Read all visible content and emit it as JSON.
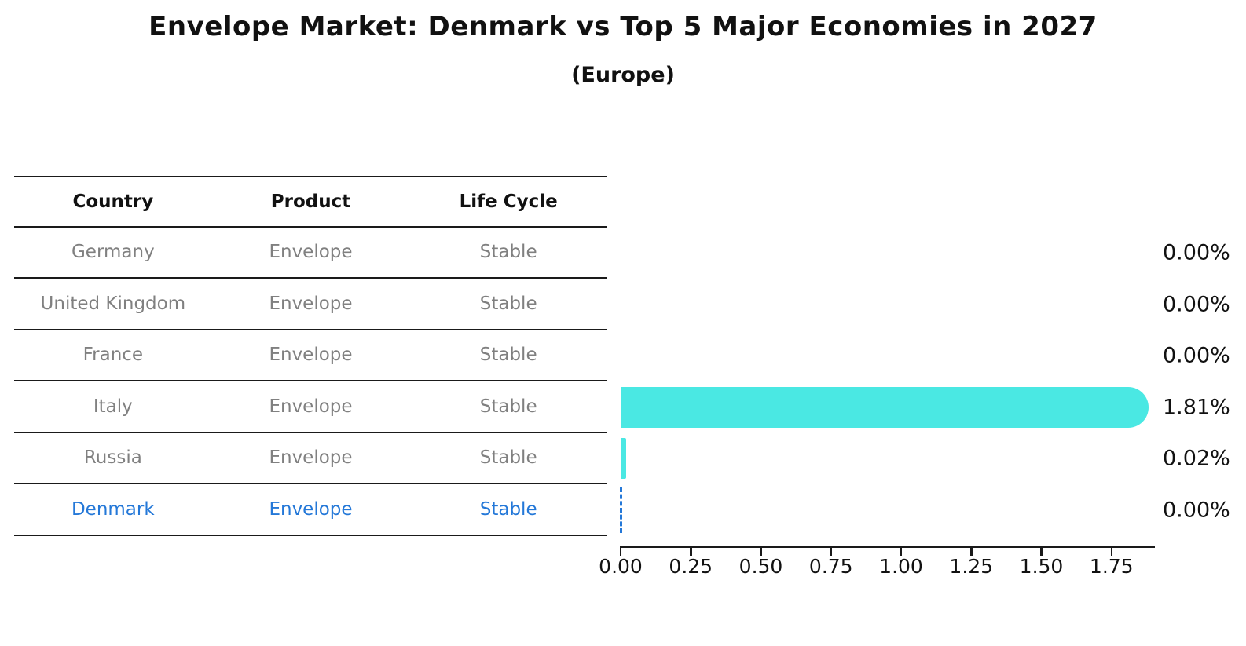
{
  "title": "Envelope Market: Denmark vs Top 5 Major Economies in 2027",
  "subtitle": "(Europe)",
  "colors": {
    "bar": "#4ae8e3",
    "highlight_blue": "#2478d8",
    "muted_text": "#808080",
    "text": "#111111",
    "line": "#1a1a1a"
  },
  "table": {
    "columns": [
      "Country",
      "Product",
      "Life Cycle"
    ],
    "rows": [
      {
        "country": "Germany",
        "product": "Envelope",
        "life_cycle": "Stable",
        "value": 0.0,
        "label": "0.00%",
        "highlight": false
      },
      {
        "country": "United Kingdom",
        "product": "Envelope",
        "life_cycle": "Stable",
        "value": 0.0,
        "label": "0.00%",
        "highlight": false
      },
      {
        "country": "France",
        "product": "Envelope",
        "life_cycle": "Stable",
        "value": 0.0,
        "label": "0.00%",
        "highlight": false
      },
      {
        "country": "Italy",
        "product": "Envelope",
        "life_cycle": "Stable",
        "value": 1.81,
        "label": "1.81%",
        "highlight": false
      },
      {
        "country": "Russia",
        "product": "Envelope",
        "life_cycle": "Stable",
        "value": 0.02,
        "label": "0.02%",
        "highlight": false
      },
      {
        "country": "Denmark",
        "product": "Envelope",
        "life_cycle": "Stable",
        "value": 0.0,
        "label": "0.00%",
        "highlight": true
      }
    ]
  },
  "chart_data": {
    "type": "bar",
    "orientation": "horizontal",
    "title": "Envelope Market: Denmark vs Top 5 Major Economies in 2027",
    "subtitle": "(Europe)",
    "categories": [
      "Germany",
      "United Kingdom",
      "France",
      "Italy",
      "Russia",
      "Denmark"
    ],
    "values": [
      0.0,
      0.0,
      0.0,
      1.81,
      0.02,
      0.0
    ],
    "value_labels": [
      "0.00%",
      "0.00%",
      "0.00%",
      "1.81%",
      "0.02%",
      "0.00%"
    ],
    "xlabel": "",
    "ylabel": "",
    "xlim": [
      0,
      1.9
    ],
    "x_ticks": [
      "0.00",
      "0.25",
      "0.50",
      "0.75",
      "1.00",
      "1.25",
      "1.50",
      "1.75"
    ],
    "grid": false,
    "legend": false,
    "bar_color": "#4ae8e3",
    "highlighted_category": "Denmark",
    "highlight_marker": "dashed zero line"
  }
}
